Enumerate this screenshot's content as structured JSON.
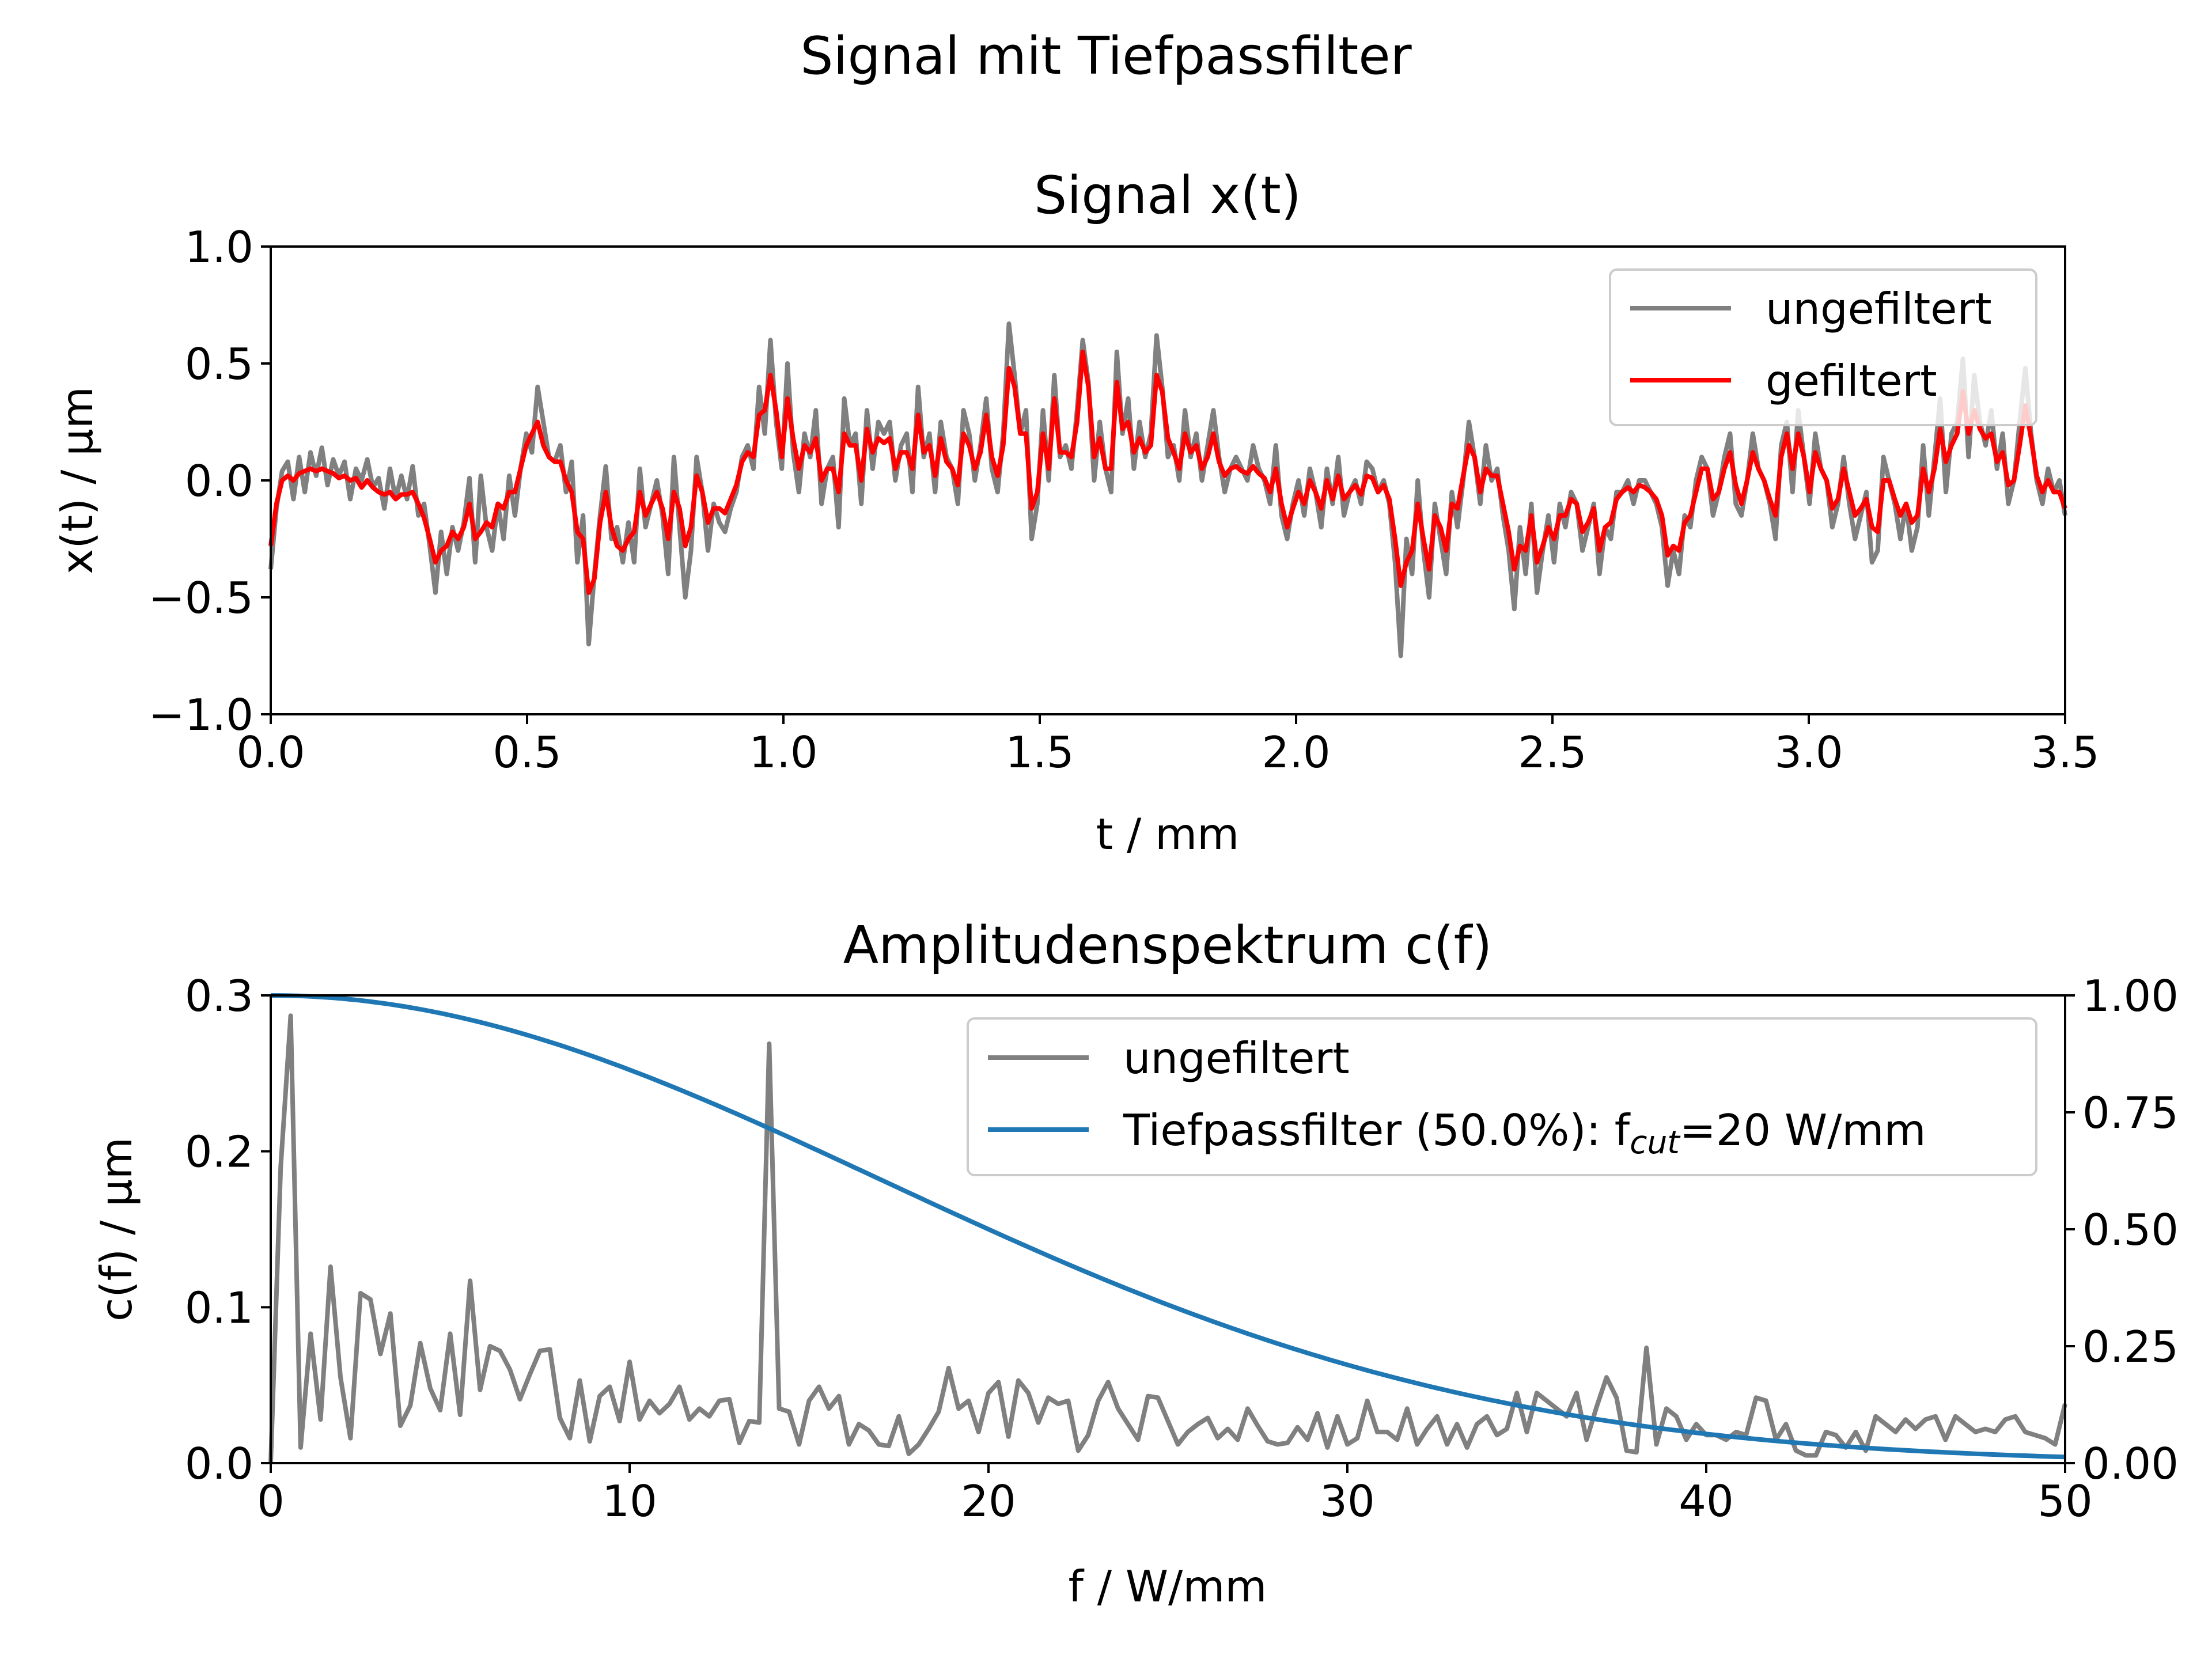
{
  "figure": {
    "suptitle": "Signal mit Tiefpassfilter"
  },
  "chart_data": [
    {
      "type": "line",
      "title": "Signal x(t)",
      "xlabel": "t / mm",
      "ylabel": "x(t) / µm",
      "xlim": [
        0,
        3.5
      ],
      "ylim": [
        -1.0,
        1.0
      ],
      "xticks": [
        "0.0",
        "0.5",
        "1.0",
        "1.5",
        "2.0",
        "2.5",
        "3.0",
        "3.5"
      ],
      "yticks": [
        "−1.0",
        "−0.5",
        "0.0",
        "0.5",
        "1.0"
      ],
      "grid": false,
      "legend": "top-right",
      "series": [
        {
          "name": "ungefiltert",
          "color": "#808080",
          "x_start": 0.0,
          "x_step": 0.01,
          "y": [
            -0.38,
            -0.12,
            0.04,
            0.08,
            -0.08,
            0.1,
            -0.05,
            0.12,
            0.02,
            0.14,
            -0.02,
            0.09,
            0.02,
            0.08,
            -0.08,
            0.05,
            0.0,
            0.09,
            -0.03,
            0.01,
            -0.12,
            0.05,
            -0.08,
            0.02,
            -0.08,
            0.06,
            -0.15,
            -0.1,
            -0.28,
            -0.48,
            -0.22,
            -0.4,
            -0.2,
            -0.3,
            -0.18,
            0.01,
            -0.35,
            0.02,
            -0.2,
            -0.3,
            -0.1,
            -0.25,
            0.02,
            -0.15,
            0.05,
            0.2,
            0.12,
            0.4,
            0.25,
            0.1,
            0.08,
            0.15,
            -0.05,
            0.08,
            -0.35,
            -0.15,
            -0.7,
            -0.4,
            -0.15,
            0.06,
            -0.25,
            -0.2,
            -0.35,
            -0.18,
            -0.35,
            0.05,
            -0.2,
            -0.1,
            0.0,
            -0.15,
            -0.4,
            0.1,
            -0.2,
            -0.5,
            -0.3,
            0.1,
            -0.05,
            -0.3,
            -0.1,
            -0.18,
            -0.22,
            -0.12,
            -0.05,
            0.1,
            0.15,
            0.05,
            0.4,
            0.2,
            0.6,
            0.25,
            0.05,
            0.5,
            0.12,
            -0.05,
            0.2,
            0.1,
            0.3,
            -0.1,
            0.05,
            0.1,
            -0.2,
            0.35,
            0.15,
            0.2,
            -0.1,
            0.3,
            0.05,
            0.25,
            0.2,
            0.25,
            0.0,
            0.15,
            0.2,
            -0.05,
            0.4,
            0.1,
            0.2,
            -0.05,
            0.25,
            0.1,
            0.05,
            -0.1,
            0.3,
            0.2,
            0.0,
            0.15,
            0.35,
            0.05,
            -0.05,
            0.2,
            0.67,
            0.45,
            0.2,
            0.3,
            -0.25,
            -0.1,
            0.3,
            0.0,
            0.45,
            0.1,
            0.15,
            0.05,
            0.3,
            0.6,
            0.42,
            0.0,
            0.25,
            0.05,
            -0.05,
            0.55,
            0.2,
            0.35,
            0.05,
            0.25,
            0.1,
            0.2,
            0.62,
            0.4,
            0.1,
            0.15,
            0.0,
            0.3,
            0.1,
            0.2,
            0.0,
            0.15,
            0.3,
            0.1,
            -0.05,
            0.05,
            0.1,
            0.05,
            0.0,
            0.15,
            0.05,
            0.0,
            -0.1,
            0.15,
            -0.15,
            -0.25,
            -0.1,
            0.0,
            -0.15,
            0.05,
            -0.05,
            -0.2,
            0.05,
            -0.1,
            0.1,
            -0.15,
            -0.05,
            0.0,
            -0.1,
            0.08,
            0.05,
            -0.05,
            0.0,
            -0.1,
            -0.35,
            -0.75,
            -0.25,
            -0.4,
            0.0,
            -0.3,
            -0.5,
            -0.1,
            -0.25,
            -0.4,
            -0.05,
            -0.2,
            0.0,
            0.25,
            0.1,
            -0.1,
            0.15,
            0.0,
            0.05,
            -0.15,
            -0.3,
            -0.55,
            -0.2,
            -0.4,
            -0.1,
            -0.48,
            -0.3,
            -0.15,
            -0.35,
            -0.1,
            -0.2,
            -0.05,
            -0.1,
            -0.3,
            -0.2,
            -0.1,
            -0.4,
            -0.2,
            -0.25,
            -0.05,
            -0.05,
            0.0,
            -0.1,
            0.0,
            0.0,
            -0.05,
            -0.1,
            -0.2,
            -0.45,
            -0.3,
            -0.4,
            -0.15,
            -0.2,
            0.0,
            0.1,
            0.05,
            -0.15,
            -0.05,
            0.1,
            0.2,
            -0.1,
            -0.15,
            0.0,
            0.2,
            0.05,
            0.0,
            -0.1,
            -0.25,
            0.15,
            0.25,
            -0.05,
            0.3,
            0.1,
            -0.1,
            0.2,
            0.05,
            0.0,
            -0.2,
            -0.1,
            0.1,
            -0.1,
            -0.25,
            -0.15,
            -0.05,
            -0.35,
            -0.3,
            0.1,
            0.0,
            -0.1,
            -0.25,
            -0.1,
            -0.3,
            -0.2,
            0.15,
            -0.15,
            0.1,
            0.35,
            -0.05,
            0.2,
            0.25,
            0.52,
            0.1,
            0.45,
            0.25,
            0.15,
            0.3,
            0.05,
            0.2,
            -0.1,
            0.0,
            0.25,
            0.48,
            0.2,
            0.0,
            -0.1,
            0.05,
            -0.05,
            0.0,
            -0.15
          ]
        },
        {
          "name": "gefiltert",
          "color": "#ff0000",
          "x_start": 0.0,
          "x_step": 0.01,
          "y": [
            -0.28,
            -0.1,
            0.0,
            0.02,
            0.0,
            0.03,
            0.04,
            0.05,
            0.04,
            0.05,
            0.04,
            0.03,
            0.01,
            0.02,
            0.0,
            0.01,
            -0.03,
            0.0,
            -0.03,
            -0.05,
            -0.06,
            -0.05,
            -0.08,
            -0.06,
            -0.06,
            -0.05,
            -0.1,
            -0.16,
            -0.25,
            -0.35,
            -0.3,
            -0.28,
            -0.22,
            -0.25,
            -0.2,
            -0.1,
            -0.25,
            -0.22,
            -0.18,
            -0.2,
            -0.1,
            -0.12,
            -0.05,
            -0.05,
            0.05,
            0.15,
            0.2,
            0.25,
            0.15,
            0.1,
            0.08,
            0.08,
            0.0,
            -0.05,
            -0.22,
            -0.25,
            -0.48,
            -0.42,
            -0.18,
            -0.05,
            -0.2,
            -0.28,
            -0.3,
            -0.25,
            -0.22,
            -0.05,
            -0.15,
            -0.1,
            -0.05,
            -0.12,
            -0.25,
            -0.05,
            -0.12,
            -0.28,
            -0.2,
            0.02,
            -0.05,
            -0.18,
            -0.12,
            -0.12,
            -0.14,
            -0.08,
            -0.02,
            0.08,
            0.12,
            0.1,
            0.28,
            0.3,
            0.45,
            0.3,
            0.1,
            0.35,
            0.18,
            0.05,
            0.15,
            0.12,
            0.18,
            0.0,
            0.05,
            0.05,
            -0.05,
            0.2,
            0.15,
            0.15,
            0.0,
            0.22,
            0.12,
            0.18,
            0.16,
            0.18,
            0.05,
            0.12,
            0.12,
            0.05,
            0.28,
            0.12,
            0.15,
            0.02,
            0.18,
            0.08,
            0.05,
            -0.02,
            0.2,
            0.15,
            0.05,
            0.12,
            0.28,
            0.1,
            0.02,
            0.15,
            0.48,
            0.4,
            0.2,
            0.2,
            -0.12,
            -0.05,
            0.2,
            0.05,
            0.35,
            0.12,
            0.12,
            0.1,
            0.25,
            0.55,
            0.4,
            0.1,
            0.18,
            0.05,
            0.05,
            0.42,
            0.22,
            0.25,
            0.12,
            0.18,
            0.12,
            0.15,
            0.45,
            0.38,
            0.18,
            0.12,
            0.05,
            0.2,
            0.12,
            0.15,
            0.05,
            0.1,
            0.2,
            0.08,
            0.02,
            0.05,
            0.06,
            0.04,
            0.03,
            0.06,
            0.03,
            0.01,
            -0.05,
            0.05,
            -0.1,
            -0.2,
            -0.12,
            -0.05,
            -0.1,
            0.0,
            -0.05,
            -0.12,
            0.0,
            -0.08,
            0.02,
            -0.08,
            -0.05,
            -0.02,
            -0.06,
            0.02,
            0.01,
            -0.05,
            -0.02,
            -0.08,
            -0.25,
            -0.45,
            -0.35,
            -0.3,
            -0.1,
            -0.25,
            -0.38,
            -0.15,
            -0.2,
            -0.3,
            -0.1,
            -0.12,
            0.02,
            0.15,
            0.1,
            -0.05,
            0.05,
            0.02,
            0.02,
            -0.1,
            -0.22,
            -0.38,
            -0.28,
            -0.3,
            -0.15,
            -0.35,
            -0.28,
            -0.2,
            -0.25,
            -0.15,
            -0.15,
            -0.08,
            -0.1,
            -0.22,
            -0.18,
            -0.12,
            -0.3,
            -0.2,
            -0.18,
            -0.08,
            -0.05,
            -0.03,
            -0.05,
            -0.02,
            -0.03,
            -0.05,
            -0.08,
            -0.15,
            -0.32,
            -0.28,
            -0.3,
            -0.18,
            -0.15,
            -0.05,
            0.05,
            0.05,
            -0.08,
            -0.05,
            0.05,
            0.12,
            -0.02,
            -0.1,
            0.0,
            0.12,
            0.05,
            0.0,
            -0.08,
            -0.15,
            0.1,
            0.2,
            0.05,
            0.2,
            0.1,
            -0.05,
            0.12,
            0.05,
            0.0,
            -0.12,
            -0.08,
            0.05,
            -0.05,
            -0.15,
            -0.12,
            -0.08,
            -0.2,
            -0.22,
            0.0,
            0.0,
            -0.08,
            -0.15,
            -0.1,
            -0.18,
            -0.15,
            0.05,
            -0.05,
            0.05,
            0.22,
            0.08,
            0.15,
            0.2,
            0.38,
            0.2,
            0.3,
            0.22,
            0.18,
            0.2,
            0.08,
            0.12,
            -0.02,
            0.0,
            0.15,
            0.32,
            0.18,
            0.02,
            -0.05,
            0.0,
            -0.05,
            -0.05,
            -0.12
          ]
        }
      ]
    },
    {
      "type": "line",
      "title": "Amplitudenspektrum c(f)",
      "xlabel": "f / W/mm",
      "ylabel": "c(f) / µm",
      "xlim": [
        0,
        50
      ],
      "ylim": [
        0,
        0.3
      ],
      "y2lim": [
        0,
        1.0
      ],
      "xticks": [
        "0",
        "10",
        "20",
        "30",
        "40",
        "50"
      ],
      "yticks": [
        "0.0",
        "0.1",
        "0.2",
        "0.3"
      ],
      "y2ticks": [
        "0.00",
        "0.25",
        "0.50",
        "0.75",
        "1.00"
      ],
      "grid": false,
      "legend": "top-right",
      "series": [
        {
          "name": "ungefiltert",
          "color": "#808080",
          "axis": "left",
          "x_start": 0.0,
          "x_step": 0.2857,
          "y": [
            0.0,
            0.19,
            0.287,
            0.01,
            0.083,
            0.028,
            0.126,
            0.055,
            0.016,
            0.109,
            0.105,
            0.07,
            0.096,
            0.024,
            0.037,
            0.077,
            0.048,
            0.034,
            0.083,
            0.031,
            0.117,
            0.047,
            0.075,
            0.072,
            0.06,
            0.041,
            0.057,
            0.072,
            0.073,
            0.029,
            0.016,
            0.053,
            0.014,
            0.043,
            0.049,
            0.027,
            0.065,
            0.028,
            0.04,
            0.032,
            0.038,
            0.049,
            0.028,
            0.035,
            0.03,
            0.04,
            0.041,
            0.013,
            0.027,
            0.026,
            0.269,
            0.035,
            0.033,
            0.012,
            0.04,
            0.049,
            0.035,
            0.043,
            0.012,
            0.025,
            0.021,
            0.012,
            0.011,
            0.03,
            0.006,
            0.012,
            0.022,
            0.033,
            0.061,
            0.035,
            0.04,
            0.02,
            0.045,
            0.052,
            0.017,
            0.053,
            0.045,
            0.026,
            0.042,
            0.038,
            0.04,
            0.008,
            0.018,
            0.04,
            0.052,
            0.035,
            0.025,
            0.015,
            0.043,
            0.042,
            0.027,
            0.012,
            0.02,
            0.025,
            0.029,
            0.016,
            0.022,
            0.015,
            0.035,
            0.024,
            0.014,
            0.012,
            0.013,
            0.023,
            0.015,
            0.032,
            0.01,
            0.03,
            0.012,
            0.016,
            0.04,
            0.02,
            0.02,
            0.015,
            0.035,
            0.012,
            0.022,
            0.03,
            0.012,
            0.025,
            0.01,
            0.025,
            0.03,
            0.018,
            0.022,
            0.045,
            0.02,
            0.045,
            0.04,
            0.035,
            0.03,
            0.045,
            0.015,
            0.036,
            0.055,
            0.042,
            0.008,
            0.007,
            0.074,
            0.012,
            0.035,
            0.03,
            0.015,
            0.025,
            0.018,
            0.018,
            0.015,
            0.02,
            0.018,
            0.042,
            0.04,
            0.015,
            0.025,
            0.008,
            0.005,
            0.005,
            0.02,
            0.018,
            0.01,
            0.02,
            0.008,
            0.03,
            0.025,
            0.02,
            0.028,
            0.022,
            0.028,
            0.03,
            0.015,
            0.03,
            0.025,
            0.02,
            0.022,
            0.02,
            0.028,
            0.03,
            0.02,
            0.018,
            0.016,
            0.012,
            0.038
          ]
        },
        {
          "name": "Tiefpassfilter (50.0%): f<sub>cut</sub>=20 W/mm",
          "legend_parts": [
            "Tiefpassfilter (50.0%): f",
            "cut",
            "=20 W/mm"
          ],
          "color": "#1f77b4",
          "axis": "right",
          "function": "gaussian",
          "cutoff": 20,
          "transmission_at_cutoff": 0.5
        }
      ]
    }
  ]
}
